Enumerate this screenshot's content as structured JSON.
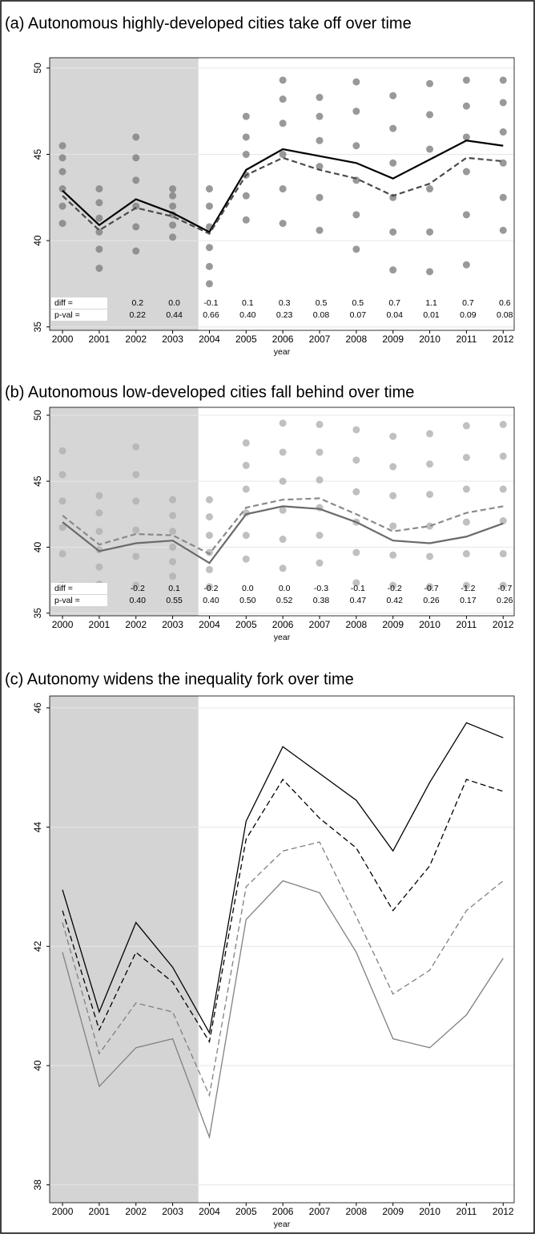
{
  "chart_data": [
    {
      "type": "line",
      "title": "(a) Autonomous highly-developed cities take off over time",
      "x_label": "year",
      "xlim": [
        1999.65,
        2012.3
      ],
      "xticks": [
        2000,
        2001,
        2002,
        2003,
        2004,
        2005,
        2006,
        2007,
        2008,
        2009,
        2010,
        2011,
        2012
      ],
      "ylim": [
        34.8,
        50.6
      ],
      "yticks": [
        35,
        40,
        45,
        50
      ],
      "grid": true,
      "shaded_span": [
        1999.65,
        2003.7
      ],
      "shade_color": "#d6d6d6",
      "x": [
        2000,
        2001,
        2002,
        2003,
        2004,
        2005,
        2006,
        2007,
        2008,
        2009,
        2010,
        2011,
        2012
      ],
      "series": [
        {
          "color": "#000000",
          "style": "solid",
          "values": [
            42.9,
            40.9,
            42.4,
            41.6,
            40.5,
            44.1,
            45.3,
            44.9,
            44.5,
            43.6,
            44.7,
            45.8,
            45.5
          ]
        },
        {
          "color": "#4a4a4a",
          "style": "dashed",
          "values": [
            42.6,
            40.6,
            41.9,
            41.4,
            40.4,
            43.8,
            44.8,
            44.1,
            43.6,
            42.6,
            43.3,
            44.8,
            44.6
          ]
        }
      ],
      "scatter": {
        "color": "#808080",
        "x": [
          2000,
          2001,
          2002,
          2003,
          2004,
          2005,
          2006,
          2007,
          2008,
          2009,
          2010,
          2011,
          2012
        ],
        "y": [
          [
            41.0,
            42.0,
            43.0,
            44.0,
            44.8,
            45.5
          ],
          [
            38.4,
            39.5,
            40.5,
            41.3,
            42.2,
            43.0
          ],
          [
            39.4,
            40.8,
            42.0,
            43.5,
            44.8,
            46.0
          ],
          [
            40.2,
            40.9,
            41.5,
            42.0,
            42.6,
            43.0
          ],
          [
            37.5,
            38.5,
            39.6,
            40.8,
            42.0,
            43.0
          ],
          [
            41.2,
            42.6,
            43.8,
            45.0,
            46.0,
            47.2
          ],
          [
            41.0,
            43.0,
            45.0,
            46.8,
            48.2,
            49.3
          ],
          [
            40.6,
            42.5,
            44.3,
            45.8,
            47.2,
            48.3
          ],
          [
            39.5,
            41.5,
            43.5,
            45.5,
            47.5,
            49.2
          ],
          [
            38.3,
            40.5,
            42.5,
            44.5,
            46.5,
            48.4
          ],
          [
            38.2,
            40.5,
            43.0,
            45.3,
            47.3,
            49.1
          ],
          [
            38.6,
            41.5,
            44.0,
            46.0,
            47.8,
            49.3
          ],
          [
            40.6,
            42.5,
            44.5,
            46.3,
            48.0,
            49.3
          ]
        ]
      },
      "diff_row": {
        "label": "diff =",
        "values": [
          null,
          null,
          "0.2",
          "0.0",
          "-0.1",
          "0.1",
          "0.3",
          "0.5",
          "0.5",
          "0.7",
          "1.1",
          "0.7",
          "0.6"
        ]
      },
      "pval_row": {
        "label": "p-val =",
        "values": [
          null,
          null,
          "0.22",
          "0.44",
          "0.66",
          "0.40",
          "0.23",
          "0.08",
          "0.07",
          "0.04",
          "0.01",
          "0.09",
          "0.08"
        ]
      }
    },
    {
      "type": "line",
      "title": "(b) Autonomous low-developed cities fall behind over time",
      "x_label": "year",
      "xlim": [
        1999.65,
        2012.3
      ],
      "xticks": [
        2000,
        2001,
        2002,
        2003,
        2004,
        2005,
        2006,
        2007,
        2008,
        2009,
        2010,
        2011,
        2012
      ],
      "ylim": [
        34.8,
        50.6
      ],
      "yticks": [
        35,
        40,
        45,
        50
      ],
      "grid": true,
      "shaded_span": [
        1999.65,
        2003.7
      ],
      "shade_color": "#d6d6d6",
      "x": [
        2000,
        2001,
        2002,
        2003,
        2004,
        2005,
        2006,
        2007,
        2008,
        2009,
        2010,
        2011,
        2012
      ],
      "series": [
        {
          "color": "#6a6a6a",
          "style": "solid",
          "values": [
            41.9,
            39.7,
            40.3,
            40.5,
            38.8,
            42.5,
            43.1,
            42.9,
            41.9,
            40.5,
            40.3,
            40.8,
            41.8
          ]
        },
        {
          "color": "#8a8a8a",
          "style": "dashed",
          "values": [
            42.4,
            40.2,
            41.0,
            40.9,
            39.5,
            43.0,
            43.6,
            43.7,
            42.5,
            41.2,
            41.6,
            42.6,
            43.1
          ]
        }
      ],
      "scatter": {
        "color": "#b0b0b0",
        "x": [
          2000,
          2001,
          2002,
          2003,
          2004,
          2005,
          2006,
          2007,
          2008,
          2009,
          2010,
          2011,
          2012
        ],
        "y": [
          [
            37.1,
            39.5,
            41.5,
            43.5,
            45.5,
            47.3
          ],
          [
            37.2,
            38.5,
            39.8,
            41.2,
            42.6,
            43.9
          ],
          [
            37.1,
            39.3,
            41.3,
            43.5,
            45.5,
            47.6
          ],
          [
            37.8,
            38.9,
            40.0,
            41.2,
            42.4,
            43.6
          ],
          [
            37.0,
            38.3,
            39.6,
            40.9,
            42.3,
            43.6
          ],
          [
            39.1,
            40.9,
            42.6,
            44.4,
            46.2,
            47.9
          ],
          [
            38.4,
            40.6,
            42.8,
            45.0,
            47.2,
            49.4
          ],
          [
            38.8,
            40.9,
            43.0,
            45.1,
            47.2,
            49.3
          ],
          [
            37.3,
            39.6,
            41.9,
            44.2,
            46.6,
            48.9
          ],
          [
            37.1,
            39.4,
            41.6,
            43.9,
            46.1,
            48.4
          ],
          [
            37.0,
            39.3,
            41.6,
            44.0,
            46.3,
            48.6
          ],
          [
            37.1,
            39.5,
            41.9,
            44.4,
            46.8,
            49.2
          ],
          [
            37.1,
            39.5,
            42.0,
            44.4,
            46.9,
            49.3
          ]
        ]
      },
      "diff_row": {
        "label": "diff =",
        "values": [
          null,
          null,
          "-0.2",
          "0.1",
          "-0.2",
          "0.0",
          "0.0",
          "-0.3",
          "-0.1",
          "-0.2",
          "-0.7",
          "-1.2",
          "-0.7"
        ]
      },
      "pval_row": {
        "label": "p-val =",
        "values": [
          null,
          null,
          "0.40",
          "0.55",
          "0.40",
          "0.50",
          "0.52",
          "0.38",
          "0.47",
          "0.42",
          "0.26",
          "0.17",
          "0.26"
        ]
      }
    },
    {
      "type": "line",
      "title": "(c) Autonomy widens the inequality fork over time",
      "x_label": "year",
      "xlim": [
        1999.65,
        2012.3
      ],
      "xticks": [
        2000,
        2001,
        2002,
        2003,
        2004,
        2005,
        2006,
        2007,
        2008,
        2009,
        2010,
        2011,
        2012
      ],
      "ylim": [
        37.7,
        46.2
      ],
      "yticks": [
        38,
        40,
        42,
        44,
        46
      ],
      "grid": true,
      "shaded_span": [
        1999.65,
        2003.7
      ],
      "shade_color": "#d4d4d4",
      "x": [
        2000,
        2001,
        2002,
        2003,
        2004,
        2005,
        2006,
        2007,
        2008,
        2009,
        2010,
        2011,
        2012
      ],
      "series": [
        {
          "color": "#000000",
          "style": "solid",
          "values": [
            42.95,
            40.9,
            42.4,
            41.65,
            40.55,
            44.1,
            45.35,
            44.9,
            44.45,
            43.6,
            44.75,
            45.75,
            45.5
          ]
        },
        {
          "color": "#000000",
          "style": "dashed",
          "values": [
            42.6,
            40.6,
            41.9,
            41.4,
            40.4,
            43.8,
            44.8,
            44.15,
            43.65,
            42.6,
            43.35,
            44.8,
            44.6
          ]
        },
        {
          "color": "#808080",
          "style": "dashed",
          "values": [
            42.4,
            40.2,
            41.05,
            40.9,
            39.5,
            43.0,
            43.6,
            43.75,
            42.5,
            41.2,
            41.6,
            42.6,
            43.1
          ]
        },
        {
          "color": "#808080",
          "style": "solid",
          "values": [
            41.9,
            39.65,
            40.3,
            40.45,
            38.8,
            42.45,
            43.1,
            42.9,
            41.9,
            40.45,
            40.3,
            40.85,
            41.8
          ]
        }
      ]
    }
  ]
}
